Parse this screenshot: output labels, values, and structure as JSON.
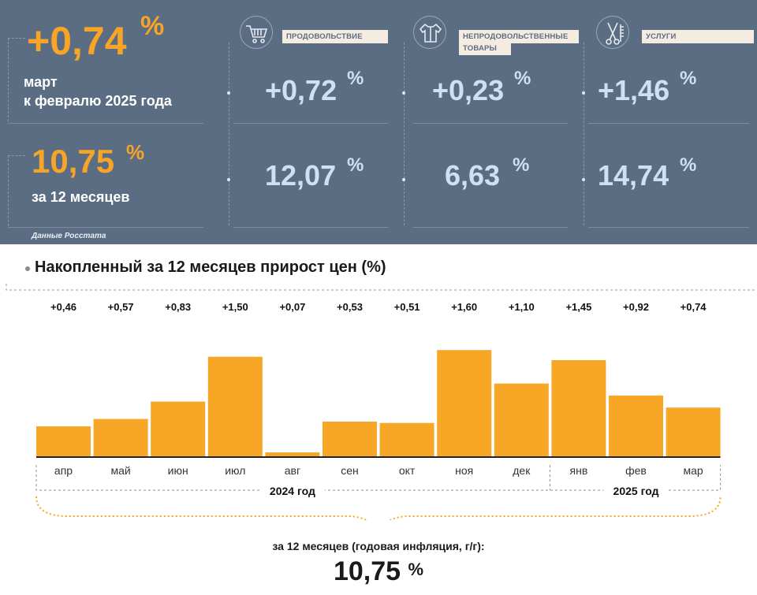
{
  "summary": {
    "monthly_value": "+0,74",
    "monthly_pct": "%",
    "monthly_caption_1": "март",
    "monthly_caption_2": "к февралю 2025 года",
    "annual_value": "10,75",
    "annual_pct": "%",
    "annual_caption": "за 12 месяцев"
  },
  "categories": [
    {
      "icon": "shopping-cart-icon",
      "label_1": "ПРОДОВОЛЬСТВИЕ",
      "label_2": "",
      "monthly": "+0,72",
      "annual": "12,07",
      "pct": "%"
    },
    {
      "icon": "clothing-icon",
      "label_1": "НЕПРОДОВОЛЬСТВЕННЫЕ",
      "label_2": "ТОВАРЫ",
      "monthly": "+0,23",
      "annual": "6,63",
      "pct": "%"
    },
    {
      "icon": "scissors-comb-icon",
      "label_1": "УСЛУГИ",
      "label_2": "",
      "monthly": "+1,46",
      "annual": "14,74",
      "pct": "%"
    }
  ],
  "source": "Данные Росстата",
  "colors": {
    "panel": "#5b6d83",
    "accent": "#f7a427",
    "value_blue": "#cde0f4",
    "bar": "#f7a625"
  },
  "chart_data": {
    "type": "bar",
    "title": "Накопленный за 12 месяцев прирост цен (%)",
    "categories": [
      "апр",
      "май",
      "июн",
      "июл",
      "авг",
      "сен",
      "окт",
      "ноя",
      "дек",
      "янв",
      "фев",
      "мар"
    ],
    "values": [
      0.46,
      0.57,
      0.83,
      1.5,
      0.07,
      0.53,
      0.51,
      1.6,
      1.1,
      1.45,
      0.92,
      0.74
    ],
    "value_labels": [
      "+0,46",
      "+0,57",
      "+0,83",
      "+1,50",
      "+0,07",
      "+0,53",
      "+0,51",
      "+1,60",
      "+1,10",
      "+1,45",
      "+0,92",
      "+0,74"
    ],
    "years": [
      {
        "label": "2024 год",
        "from": "апр",
        "to": "дек"
      },
      {
        "label": "2025 год",
        "from": "янв",
        "to": "мар"
      }
    ],
    "ylim": [
      0,
      1.65
    ],
    "grid": false,
    "bottom_caption": "за 12 месяцев (годовая инфляция, г/г):",
    "bottom_value": "10,75",
    "bottom_pct": "%"
  }
}
